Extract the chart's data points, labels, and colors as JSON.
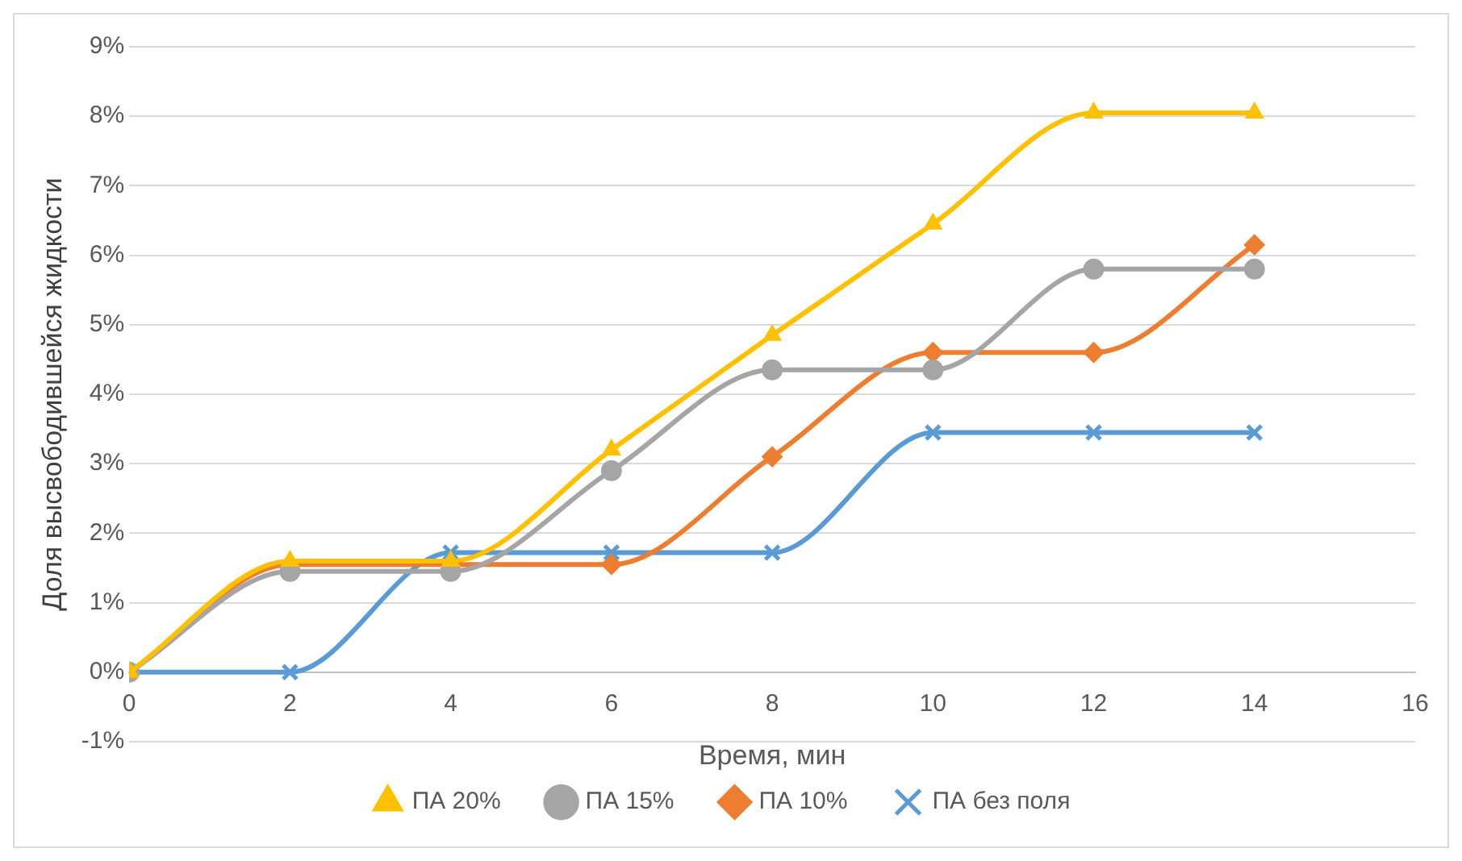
{
  "chart_data": {
    "type": "line",
    "xlabel": "Время, мин",
    "ylabel": "Доля высвободившейся жидкости",
    "x": [
      0,
      2,
      4,
      6,
      8,
      10,
      12,
      14
    ],
    "series": [
      {
        "name": "ПА без поля",
        "color": "#5b9bd5",
        "marker": "cross",
        "values": [
          0,
          0,
          1.72,
          1.72,
          1.72,
          3.45,
          3.45,
          3.45
        ]
      },
      {
        "name": "ПА 10%",
        "color": "#ed7d31",
        "marker": "diamond",
        "values": [
          0,
          1.55,
          1.55,
          1.55,
          3.1,
          4.6,
          4.6,
          6.15
        ]
      },
      {
        "name": "ПА 15%",
        "color": "#a5a5a5",
        "marker": "circle",
        "values": [
          0,
          1.45,
          1.45,
          2.9,
          4.35,
          4.35,
          5.8,
          5.8
        ]
      },
      {
        "name": "ПА 20%",
        "color": "#ffc000",
        "marker": "triangle",
        "values": [
          0,
          1.6,
          1.6,
          3.2,
          4.85,
          6.45,
          8.05,
          8.05
        ]
      }
    ],
    "xlim": [
      0,
      16
    ],
    "xticks": [
      0,
      2,
      4,
      6,
      8,
      10,
      12,
      14,
      16
    ],
    "ylim": [
      -1,
      9
    ],
    "yticks": [
      {
        "value": -1,
        "label": "-1%"
      },
      {
        "value": 0,
        "label": "0%"
      },
      {
        "value": 1,
        "label": "1%"
      },
      {
        "value": 2,
        "label": "2%"
      },
      {
        "value": 3,
        "label": "3%"
      },
      {
        "value": 4,
        "label": "4%"
      },
      {
        "value": 5,
        "label": "5%"
      },
      {
        "value": 6,
        "label": "6%"
      },
      {
        "value": 7,
        "label": "7%"
      },
      {
        "value": 8,
        "label": "8%"
      },
      {
        "value": 9,
        "label": "9%"
      }
    ],
    "grid": "y",
    "legend": "bottom"
  }
}
